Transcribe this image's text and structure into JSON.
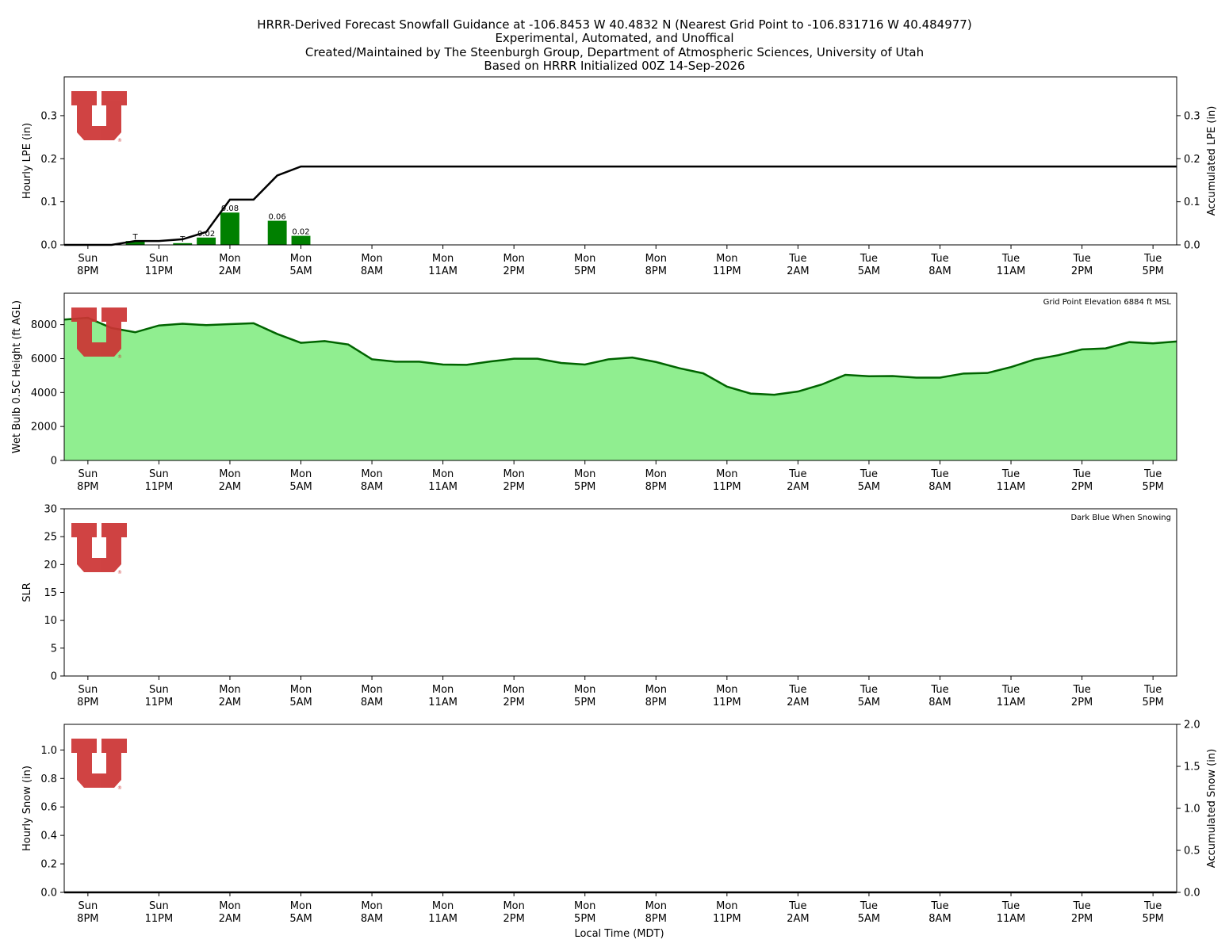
{
  "title_lines": [
    "HRRR-Derived Forecast Snowfall Guidance at -106.8453 W 40.4832 N (Nearest Grid Point to -106.831716 W 40.484977)",
    "Experimental, Automated, and Unoffical",
    "Created/Maintained by The Steenburgh Group, Department of Atmospheric Sciences, University of Utah",
    "Based on HRRR Initialized 00Z 14-Sep-2026"
  ],
  "logo_color": "#cc3333",
  "logo_mark": "®",
  "x_label": "Local Time (MDT)",
  "time_ticks": [
    {
      "index": 1,
      "day": "Sun",
      "time": "8PM"
    },
    {
      "index": 4,
      "day": "Sun",
      "time": "11PM"
    },
    {
      "index": 7,
      "day": "Mon",
      "time": "2AM"
    },
    {
      "index": 10,
      "day": "Mon",
      "time": "5AM"
    },
    {
      "index": 13,
      "day": "Mon",
      "time": "8AM"
    },
    {
      "index": 16,
      "day": "Mon",
      "time": "11AM"
    },
    {
      "index": 19,
      "day": "Mon",
      "time": "2PM"
    },
    {
      "index": 22,
      "day": "Mon",
      "time": "5PM"
    },
    {
      "index": 25,
      "day": "Mon",
      "time": "8PM"
    },
    {
      "index": 28,
      "day": "Mon",
      "time": "11PM"
    },
    {
      "index": 31,
      "day": "Tue",
      "time": "2AM"
    },
    {
      "index": 34,
      "day": "Tue",
      "time": "5AM"
    },
    {
      "index": 37,
      "day": "Tue",
      "time": "8AM"
    },
    {
      "index": 40,
      "day": "Tue",
      "time": "11AM"
    },
    {
      "index": 43,
      "day": "Tue",
      "time": "2PM"
    },
    {
      "index": 46,
      "day": "Tue",
      "time": "5PM"
    }
  ],
  "x_range": [
    0,
    47
  ],
  "chart_data": [
    {
      "id": "lpe",
      "type": "bar",
      "ylabel": "Hourly LPE (in)",
      "ylabel_right": "Accumulated LPE (in)",
      "ylim": [
        0,
        0.39
      ],
      "yticks": [
        "0.0",
        "0.1",
        "0.2",
        "0.3"
      ],
      "ytick_values": [
        0,
        0.1,
        0.2,
        0.3
      ],
      "yticks_right": [
        "0.0",
        "0.1",
        "0.2",
        "0.3"
      ],
      "ytick_values_right": [
        0,
        0.1,
        0.2,
        0.3
      ],
      "bar_color": "#008000",
      "line_color": "#000000",
      "bars": [
        {
          "x": 3,
          "value": 0.009,
          "label": "T"
        },
        {
          "x": 5,
          "value": 0.004,
          "label": "T"
        },
        {
          "x": 6,
          "value": 0.017,
          "label": "0.02"
        },
        {
          "x": 7,
          "value": 0.075,
          "label": "0.08"
        },
        {
          "x": 9,
          "value": 0.056,
          "label": "0.06"
        },
        {
          "x": 10,
          "value": 0.021,
          "label": "0.02"
        }
      ],
      "accumulated": {
        "x": [
          0,
          1,
          2,
          3,
          4,
          5,
          6,
          7,
          8,
          9,
          10,
          47
        ],
        "y": [
          0,
          0,
          0,
          0.009,
          0.009,
          0.013,
          0.03,
          0.105,
          0.105,
          0.161,
          0.182,
          0.182
        ]
      }
    },
    {
      "id": "wetbulb",
      "type": "area",
      "ylabel": "Wet Bulb 0.5C Height (ft AGL)",
      "ylim": [
        0,
        9850
      ],
      "yticks": [
        "0",
        "2000",
        "4000",
        "6000",
        "8000"
      ],
      "ytick_values": [
        0,
        2000,
        4000,
        6000,
        8000
      ],
      "fill_color": "#90ee90",
      "line_color": "#006400",
      "annotation": "Grid Point Elevation 6884 ft MSL",
      "x": [
        0,
        1,
        2,
        3,
        4,
        5,
        6,
        7,
        8,
        9,
        10,
        11,
        12,
        13,
        14,
        15,
        16,
        17,
        18,
        19,
        20,
        21,
        22,
        23,
        24,
        25,
        26,
        27,
        28,
        29,
        30,
        31,
        32,
        33,
        34,
        35,
        36,
        37,
        38,
        39,
        40,
        41,
        42,
        43,
        44,
        45,
        46,
        47
      ],
      "y": [
        8300,
        8400,
        7800,
        7550,
        7950,
        8050,
        7970,
        8030,
        8080,
        7450,
        6930,
        7030,
        6830,
        5960,
        5820,
        5820,
        5650,
        5630,
        5830,
        5990,
        5990,
        5740,
        5650,
        5960,
        6060,
        5800,
        5430,
        5130,
        4350,
        3940,
        3870,
        4060,
        4470,
        5040,
        4960,
        4970,
        4880,
        4880,
        5120,
        5150,
        5500,
        5950,
        6200,
        6540,
        6600,
        6970,
        6900,
        7010
      ]
    },
    {
      "id": "slr",
      "type": "line",
      "ylabel": "SLR",
      "ylim": [
        0,
        30
      ],
      "yticks": [
        "0",
        "5",
        "10",
        "15",
        "20",
        "25",
        "30"
      ],
      "ytick_values": [
        0,
        5,
        10,
        15,
        20,
        25,
        30
      ],
      "annotation": "Dark Blue When Snowing",
      "line_color": "#00008b"
    },
    {
      "id": "snow",
      "type": "bar",
      "ylabel": "Hourly Snow (in)",
      "ylabel_right": "Accumulated Snow (in)",
      "ylim": [
        0,
        1.18
      ],
      "yticks": [
        "0.0",
        "0.2",
        "0.4",
        "0.6",
        "0.8",
        "1.0"
      ],
      "ytick_values": [
        0,
        0.2,
        0.4,
        0.6,
        0.8,
        1.0
      ],
      "ylim_right": [
        0,
        2.0
      ],
      "yticks_right": [
        "0.0",
        "0.5",
        "1.0",
        "1.5",
        "2.0"
      ],
      "ytick_values_right": [
        0,
        0.5,
        1.0,
        1.5,
        2.0
      ],
      "bar_color": "#00008b",
      "line_color": "#000000",
      "bars": [],
      "accumulated": {
        "x": [
          0,
          47
        ],
        "y": [
          0,
          0
        ]
      }
    }
  ]
}
